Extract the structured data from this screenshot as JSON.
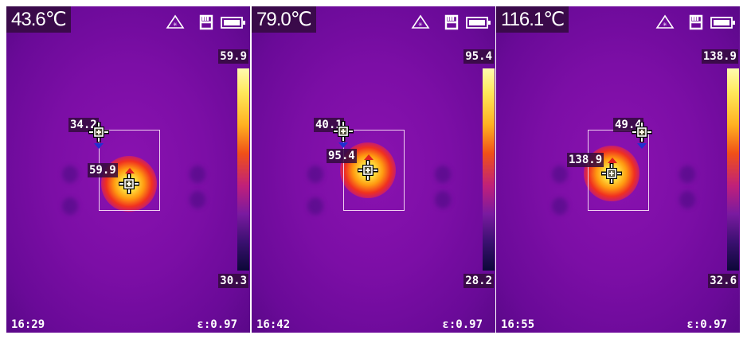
{
  "panels": [
    {
      "center_temp": "43.6℃",
      "scale_max": "59.9",
      "scale_min": "30.3",
      "cursor_temp": "34.2",
      "max_temp": "59.9",
      "time": "16:29",
      "emissivity": "ε:0.97"
    },
    {
      "center_temp": "79.0℃",
      "scale_max": "95.4",
      "scale_min": "28.2",
      "cursor_temp": "40.1",
      "max_temp": "95.4",
      "time": "16:42",
      "emissivity": "ε:0.97"
    },
    {
      "center_temp": "116.1℃",
      "scale_max": "138.9",
      "scale_min": "32.6",
      "cursor_temp": "49.4",
      "max_temp": "138.9",
      "time": "16:55",
      "emissivity": "ε:0.97"
    }
  ],
  "icons": [
    "laser-warning-icon",
    "sd-card-icon",
    "battery-icon"
  ],
  "colors": {
    "palette": "iron",
    "min_marker": "#2030d0",
    "max_marker": "#e02020"
  }
}
